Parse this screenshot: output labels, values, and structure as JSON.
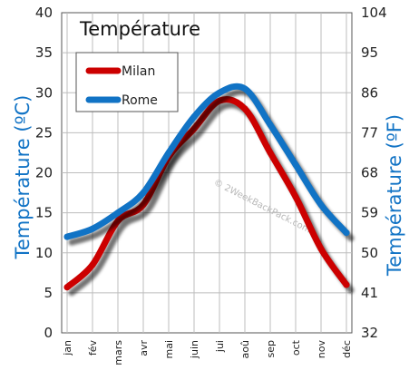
{
  "chart_data": {
    "type": "line",
    "title": "Température",
    "ylabel_left": "Température (ºC)",
    "ylabel_right": "Température (ºF)",
    "categories": [
      "jan",
      "fév",
      "mars",
      "avr",
      "mai",
      "juin",
      "jui",
      "aoû",
      "sep",
      "oct",
      "nov",
      "déc"
    ],
    "ylim": [
      0,
      40
    ],
    "yticks_left": [
      "0",
      "5",
      "10",
      "15",
      "20",
      "25",
      "30",
      "35",
      "40"
    ],
    "yticks_right": [
      "32",
      "41",
      "50",
      "59",
      "68",
      "77",
      "86",
      "95",
      "104"
    ],
    "grid": true,
    "legend_position": "top-left",
    "series": [
      {
        "name": "Milan",
        "color": "#cc0000",
        "values": [
          5.7,
          8.5,
          14,
          16,
          22,
          25.5,
          29,
          28,
          22.5,
          17,
          10.5,
          6
        ]
      },
      {
        "name": "Rome",
        "color": "#1173c5",
        "values": [
          12,
          13,
          15,
          17.5,
          22.5,
          27,
          30,
          30.5,
          26,
          21,
          16,
          12.5
        ]
      }
    ],
    "watermark": "© 2WeekBackPack.com",
    "axis_label_color": "#1173c5"
  }
}
